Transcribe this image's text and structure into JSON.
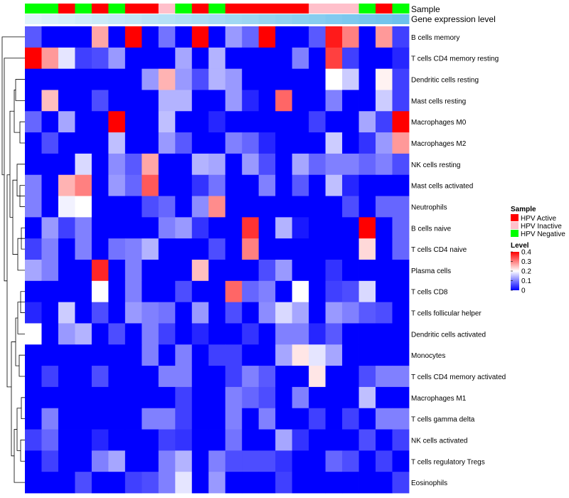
{
  "chart_data": {
    "type": "heatmap",
    "title": "",
    "rows": [
      "B cells memory",
      "T cells CD4 memory resting",
      "Dendritic cells resting",
      "Mast cells resting",
      "Macrophages M0",
      "Macrophages M2",
      "NK cells resting",
      "Mast cells activated",
      "Neutrophils",
      "B cells naive",
      "T cells CD4 naive",
      "Plasma cells",
      "T cells CD8",
      "T cells follicular helper",
      "Dendritic cells activated",
      "Monocytes",
      "T cells CD4 memory activated",
      "Macrophages M1",
      "T cells gamma delta",
      "NK cells activated",
      "T cells regulatory  Tregs",
      "Eosinophils"
    ],
    "column_annotations": {
      "sample": {
        "label": "Sample",
        "values": [
          "N",
          "N",
          "A",
          "N",
          "A",
          "N",
          "A",
          "A",
          "I",
          "N",
          "A",
          "N",
          "A",
          "A",
          "A",
          "A",
          "A",
          "I",
          "I",
          "I",
          "N",
          "A",
          "N"
        ]
      },
      "gene_expression": {
        "label": "Gene expression level",
        "values": [
          0.0,
          0.05,
          0.09,
          0.14,
          0.18,
          0.23,
          0.27,
          0.32,
          0.36,
          0.41,
          0.45,
          0.5,
          0.55,
          0.59,
          0.64,
          0.68,
          0.73,
          0.77,
          0.82,
          0.86,
          0.91,
          0.95,
          1.0
        ]
      }
    },
    "values": [
      [
        0.07,
        0,
        0,
        0,
        0.27,
        0,
        0.4,
        0,
        0.09,
        0,
        0.4,
        0,
        0.12,
        0.08,
        0.4,
        0,
        0,
        0.07,
        0.38,
        0.3,
        0,
        0.28,
        0.05
      ],
      [
        0.4,
        0.28,
        0.18,
        0.05,
        0.06,
        0.12,
        0,
        0,
        0,
        0.13,
        0,
        0.14,
        0,
        0,
        0,
        0,
        0.1,
        0,
        0.35,
        0.05,
        0,
        0,
        0.03
      ],
      [
        0,
        0,
        0,
        0,
        0,
        0,
        0,
        0.12,
        0.26,
        0.12,
        0.06,
        0.14,
        0.12,
        0,
        0,
        0,
        0,
        0,
        0.2,
        0.16,
        0,
        0.21,
        0.05
      ],
      [
        0,
        0.25,
        0,
        0,
        0.06,
        0,
        0,
        0,
        0.14,
        0.14,
        0,
        0,
        0.12,
        0.03,
        0,
        0.32,
        0,
        0,
        0.1,
        0,
        0,
        0.16,
        0.05
      ],
      [
        0.08,
        0,
        0.13,
        0,
        0,
        0.4,
        0,
        0,
        0.15,
        0,
        0,
        0.03,
        0,
        0,
        0,
        0,
        0,
        0.05,
        0,
        0,
        0.13,
        0.05,
        0.4
      ],
      [
        0,
        0.06,
        0,
        0,
        0,
        0.15,
        0,
        0,
        0.12,
        0.07,
        0,
        0,
        0.1,
        0.08,
        0.03,
        0,
        0,
        0,
        0.16,
        0,
        0.04,
        0.12,
        0.28
      ],
      [
        0,
        0,
        0,
        0.17,
        0,
        0.11,
        0.07,
        0.27,
        0,
        0,
        0.14,
        0.13,
        0,
        0.12,
        0.06,
        0,
        0.13,
        0.08,
        0.1,
        0.1,
        0.08,
        0.1,
        0.06
      ],
      [
        0.1,
        0,
        0.26,
        0.3,
        0,
        0.12,
        0.08,
        0.33,
        0,
        0,
        0.04,
        0.09,
        0,
        0,
        0.1,
        0,
        0.07,
        0,
        0.15,
        0.03,
        0,
        0,
        0
      ],
      [
        0.1,
        0,
        0.19,
        0.2,
        0,
        0,
        0,
        0.06,
        0.08,
        0,
        0.11,
        0.29,
        0,
        0,
        0,
        0,
        0,
        0,
        0,
        0.06,
        0,
        0.08,
        0.08
      ],
      [
        0,
        0.12,
        0.05,
        0.1,
        0,
        0,
        0,
        0,
        0.1,
        0.12,
        0.04,
        0,
        0,
        0.36,
        0,
        0.14,
        0.02,
        0,
        0,
        0,
        0.4,
        0,
        0.08
      ],
      [
        0.05,
        0.1,
        0,
        0.1,
        0,
        0.09,
        0.1,
        0.14,
        0,
        0,
        0,
        0.06,
        0,
        0.3,
        0,
        0,
        0,
        0,
        0,
        0,
        0.23,
        0,
        0.08
      ],
      [
        0.13,
        0.1,
        0,
        0,
        0.37,
        0,
        0.1,
        0,
        0,
        0,
        0.25,
        0,
        0,
        0,
        0.06,
        0.12,
        0,
        0,
        0.04,
        0,
        0,
        0,
        0
      ],
      [
        0,
        0,
        0,
        0,
        0.2,
        0,
        0.1,
        0,
        0,
        0.06,
        0,
        0,
        0.32,
        0.08,
        0.1,
        0,
        0.2,
        0,
        0.05,
        0.06,
        0.17,
        0,
        0
      ],
      [
        0.03,
        0,
        0.16,
        0,
        0.06,
        0,
        0.12,
        0.1,
        0.09,
        0,
        0.12,
        0,
        0.06,
        0,
        0.11,
        0.17,
        0.13,
        0,
        0.12,
        0.1,
        0.07,
        0.06,
        0
      ],
      [
        0.2,
        0,
        0.12,
        0.14,
        0,
        0.06,
        0,
        0.1,
        0.05,
        0,
        0.03,
        0,
        0,
        0.04,
        0,
        0.1,
        0.1,
        0.03,
        0.07,
        0,
        0,
        0,
        0
      ],
      [
        0,
        0,
        0,
        0,
        0,
        0,
        0,
        0.1,
        0,
        0.1,
        0,
        0.05,
        0.05,
        0,
        0,
        0.13,
        0.22,
        0.18,
        0.13,
        0,
        0,
        0,
        0
      ],
      [
        0,
        0.05,
        0,
        0,
        0.06,
        0,
        0,
        0,
        0.1,
        0.1,
        0,
        0,
        0.05,
        0.1,
        0.07,
        0,
        0,
        0.22,
        0,
        0,
        0.06,
        0.1,
        0.1
      ],
      [
        0,
        0,
        0,
        0,
        0,
        0,
        0,
        0,
        0,
        0.05,
        0,
        0,
        0.1,
        0.08,
        0.06,
        0,
        0.1,
        0,
        0,
        0,
        0.15,
        0,
        0
      ],
      [
        0,
        0.1,
        0,
        0,
        0,
        0,
        0,
        0.1,
        0.1,
        0.05,
        0,
        0,
        0.1,
        0,
        0.1,
        0,
        0,
        0.05,
        0,
        0.05,
        0,
        0.1,
        0.1
      ],
      [
        0.05,
        0.08,
        0,
        0,
        0.03,
        0,
        0,
        0,
        0.05,
        0.04,
        0,
        0,
        0.09,
        0,
        0,
        0.13,
        0.04,
        0,
        0,
        0,
        0.06,
        0,
        0.05
      ],
      [
        0,
        0.05,
        0,
        0,
        0.1,
        0.13,
        0,
        0,
        0.1,
        0.14,
        0,
        0.1,
        0.06,
        0.06,
        0.06,
        0.04,
        0,
        0,
        0.08,
        0.06,
        0,
        0.05,
        0
      ],
      [
        0,
        0,
        0,
        0.06,
        0,
        0,
        0.05,
        0.06,
        0.1,
        0.18,
        0,
        0.12,
        0,
        0,
        0,
        0.05,
        0,
        0,
        0,
        0,
        0,
        0,
        0.05
      ]
    ],
    "row_dendrogram": "visible",
    "legend": {
      "position": "right",
      "sample_title": "Sample",
      "sample_entries": [
        {
          "key": "A",
          "label": "HPV Active",
          "color": "#ff0000"
        },
        {
          "key": "I",
          "label": "HPV Inactive",
          "color": "#ffc0cb"
        },
        {
          "key": "N",
          "label": "HPV Negative",
          "color": "#00ff00"
        }
      ],
      "level_title": "Level",
      "level_ticks": [
        0,
        0.1,
        0.2,
        0.3,
        0.4
      ],
      "level_tick_labels": [
        "0",
        "0.1",
        "0.2",
        "0.3",
        "0.4"
      ]
    },
    "color_scale": {
      "low": "#0000ff",
      "mid": "#ffffff",
      "high": "#ff0000",
      "min": 0,
      "mid_value": 0.2,
      "max": 0.4
    },
    "gene_expression_colors": {
      "low": "#e0f3fb",
      "high": "#6cc1ec"
    }
  }
}
